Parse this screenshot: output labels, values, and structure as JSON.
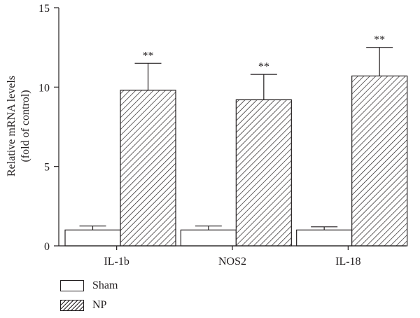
{
  "chart_data": {
    "type": "bar",
    "title": "",
    "xlabel": "",
    "ylabel": [
      "Relative mRNA levels",
      "(fold of control)"
    ],
    "ylim": [
      0,
      15
    ],
    "yticks": [
      "0",
      "5",
      "10",
      "15"
    ],
    "categories": [
      "IL-1b",
      "NOS2",
      "IL-18"
    ],
    "series": [
      {
        "name": "Sham",
        "pattern": "solid",
        "fill": "#ffffff",
        "values": [
          1.0,
          1.0,
          1.0
        ],
        "errors": [
          0.25,
          0.25,
          0.2
        ],
        "annotations": [
          "",
          "",
          ""
        ]
      },
      {
        "name": "NP",
        "pattern": "hatched",
        "fill": "#231f20",
        "values": [
          9.8,
          9.2,
          10.7
        ],
        "errors": [
          1.7,
          1.6,
          1.8
        ],
        "annotations": [
          "**",
          "**",
          "**"
        ]
      }
    ],
    "grid": false,
    "legend_position": "bottom-left"
  },
  "colors": {
    "axis": "#231f20",
    "bar_outline": "#231f20",
    "background": "#ffffff"
  }
}
